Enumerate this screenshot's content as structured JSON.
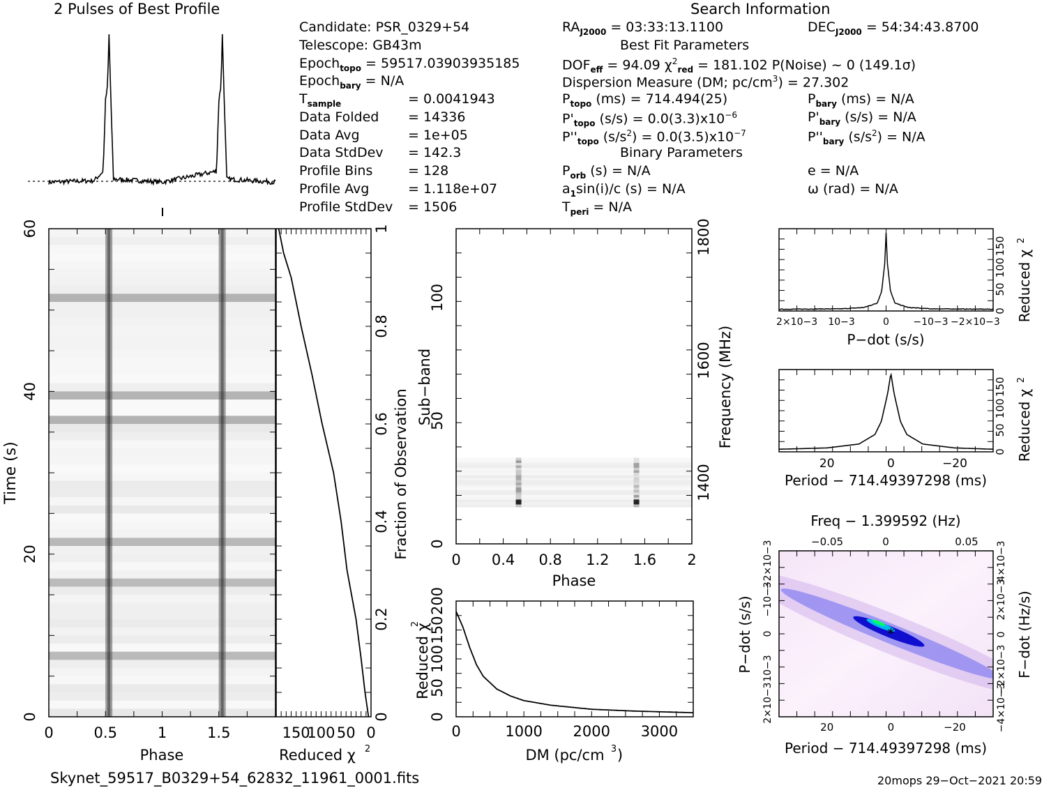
{
  "header": {
    "profile_title": "2 Pulses of Best Profile",
    "search_title": "Search Information",
    "best_fit_title": "Best Fit Parameters",
    "binary_title": "Binary Parameters"
  },
  "info": {
    "candidate": "Candidate:  PSR_0329+54",
    "telescope": "Telescope:  GB43m",
    "epoch_topo": "Epoch",
    "epoch_topo_sub": "topo",
    "epoch_topo_val": " = 59517.03903935185",
    "epoch_bary": "Epoch",
    "epoch_bary_sub": "bary",
    "epoch_bary_val": " = N/A",
    "t_sample": "T",
    "t_sample_sub": "sample",
    "t_sample_val": "=   0.0041943",
    "data_folded": "Data Folded",
    "data_folded_val": "=   14336",
    "data_avg": "Data Avg",
    "data_avg_val": "=   1e+05",
    "data_stddev": "Data StdDev",
    "data_stddev_val": "=   142.3",
    "profile_bins": "Profile Bins",
    "profile_bins_val": "=   128",
    "profile_avg": "Profile Avg",
    "profile_avg_val": "=   1.118e+07",
    "profile_stddev": "Profile StdDev",
    "profile_stddev_val": "=   1506",
    "ra": "RA",
    "ra_sub": "J2000",
    "ra_val": " = 03:33:13.1100",
    "dec": "DEC",
    "dec_sub": "J2000",
    "dec_val": " = 54:34:43.8700",
    "dof": "DOF",
    "dof_sub": "eff",
    "dof_val": " = 94.09  χ",
    "chi_sup": "2",
    "chi_sub": "red",
    "chi_val": " = 181.102  P(Noise) ~ 0   (149.1σ)",
    "dm": "Dispersion Measure (DM; pc/cm",
    "dm_sup": "3",
    "dm_val": ") = 27.302",
    "ptopo": "P",
    "ptopo_sub": "topo",
    "ptopo_val": " (ms) =  714.494(25)",
    "pdtopo": "P'",
    "pdtopo_sub": "topo",
    "pdtopo_val": " (s/s) = 0.0(3.3)x10",
    "pdtopo_exp": "−6",
    "pddtopo": "P''",
    "pddtopo_sub": "topo",
    "pddtopo_val": " (s/s",
    "pddtopo_sup": "2",
    "pddtopo_val2": ") = 0.0(3.5)x10",
    "pddtopo_exp": "−7",
    "pbary": "P",
    "pbary_sub": "bary",
    "pbary_val": " (ms) = N/A",
    "pdbary": "P'",
    "pdbary_sub": "bary",
    "pdbary_val": " (s/s) = N/A",
    "pddbary": "P''",
    "pddbary_sub": "bary",
    "pddbary_val": " (s/s",
    "pddbary_sup": "2",
    "pddbary_val2": ") = N/A",
    "porb": "P",
    "porb_sub": "orb",
    "porb_val": " (s) = N/A",
    "a1": "a",
    "a1_sub": "1",
    "a1_val": "sin(i)/c (s) = N/A",
    "tperi": "T",
    "tperi_sub": "peri",
    "tperi_val": " = N/A",
    "ecc": "e = N/A",
    "omega": "ω (rad) = N/A"
  },
  "footer": {
    "filename": "Skynet_59517_B0329+54_62832_11961_0001.fits",
    "stamp": "20mops 29−Oct−2021 20:59"
  },
  "colors": {
    "ink": "#000000",
    "cmap_low": "#ffffff",
    "cmap_mid": "#0000cc",
    "cmap_high": "#00ff66"
  },
  "chart_data": [
    {
      "id": "profile",
      "type": "line",
      "title": "2 Pulses of Best Profile",
      "xlim": [
        0,
        2
      ],
      "peaks_at_phase": [
        0.53,
        1.53
      ],
      "x_samples": [
        0,
        0.4,
        0.48,
        0.5,
        0.52,
        0.53,
        0.55,
        0.57,
        1.0,
        1.48,
        1.5,
        1.52,
        1.53,
        1.55,
        1.57,
        2.0
      ],
      "y_relative": [
        0.03,
        0.04,
        0.1,
        0.55,
        0.65,
        1.0,
        0.5,
        0.05,
        0.03,
        0.1,
        0.55,
        0.65,
        1.0,
        0.5,
        0.05,
        0.03
      ]
    },
    {
      "id": "time-phase",
      "type": "heatmap",
      "xlabel": "Phase",
      "ylabel": "Time (s)",
      "xlim": [
        0,
        2
      ],
      "ylim": [
        0,
        60
      ],
      "xticks": [
        "0",
        "0.5",
        "1",
        "1.5"
      ],
      "yticks": [
        "0",
        "20",
        "40",
        "60"
      ],
      "pulse_phase": [
        0.53,
        1.53
      ]
    },
    {
      "id": "cumulative-chi2",
      "type": "line",
      "xlabel": "Reduced χ2",
      "ylabel": "Fraction of Observation",
      "xticks": [
        "150",
        "100",
        "50",
        "0"
      ],
      "yticks": [
        "0",
        "0.2",
        "0.4",
        "0.6",
        "0.8",
        "1"
      ],
      "xlim": [
        190,
        0
      ],
      "ylim": [
        0,
        1
      ],
      "x": [
        5,
        12,
        20,
        30,
        48,
        60,
        75,
        98,
        118,
        140,
        160,
        175,
        185
      ],
      "y": [
        0.0,
        0.05,
        0.12,
        0.2,
        0.3,
        0.4,
        0.5,
        0.6,
        0.7,
        0.8,
        0.9,
        0.95,
        1.0
      ]
    },
    {
      "id": "subband-phase",
      "type": "heatmap",
      "xlabel": "Phase",
      "ylabel": "Sub−band",
      "y2label": "Frequency (MHz)",
      "xlim": [
        0,
        2
      ],
      "ylim": [
        0,
        128
      ],
      "xticks": [
        "0",
        "0.4",
        "0.8",
        "1.2",
        "1.6",
        "2"
      ],
      "yticks": [
        "0",
        "50",
        "100"
      ],
      "y2ticks": [
        "1400",
        "1600",
        "1800"
      ],
      "active_subbands": [
        15,
        35
      ],
      "pulse_phase": [
        0.53,
        1.53
      ]
    },
    {
      "id": "dm-chi2",
      "type": "line",
      "xlabel": "DM (pc/cm3)",
      "ylabel": "Reduced χ2",
      "xticks": [
        "0",
        "1000",
        "2000",
        "3000"
      ],
      "yticks": [
        "0",
        "50",
        "100",
        "150",
        "200"
      ],
      "xlim": [
        0,
        3500
      ],
      "ylim": [
        0,
        200
      ],
      "x": [
        0,
        100,
        200,
        300,
        400,
        600,
        800,
        1000,
        1400,
        2000,
        2600,
        3200,
        3500
      ],
      "y": [
        182,
        155,
        120,
        90,
        70,
        48,
        36,
        28,
        20,
        13,
        10,
        8,
        7
      ]
    },
    {
      "id": "pdot-chi2",
      "type": "line",
      "xlabel": "P−dot (s/s)",
      "ylabel": "Reduced χ2",
      "xticks": [
        "2×10−3",
        "10−3",
        "0",
        "−10−3",
        "−2×10−3"
      ],
      "yticks": [
        "0",
        "50",
        "100",
        "150"
      ],
      "xlim": [
        0.0024,
        -0.0024
      ],
      "ylim": [
        0,
        190
      ],
      "x": [
        0.0024,
        0.001,
        0.0005,
        0.0002,
        0.0001,
        3e-05,
        0,
        -3e-05,
        -0.0001,
        -0.0002,
        -0.0005,
        -0.001,
        -0.0024
      ],
      "y": [
        4,
        5,
        8,
        18,
        45,
        110,
        181,
        110,
        45,
        18,
        8,
        5,
        4
      ]
    },
    {
      "id": "period-chi2",
      "type": "line",
      "xlabel": "Period − 714.49397298 (ms)",
      "ylabel": "Reduced χ2",
      "xticks": [
        "20",
        "0",
        "−20"
      ],
      "yticks": [
        "0",
        "50",
        "100",
        "150"
      ],
      "xlim": [
        35,
        -32
      ],
      "ylim": [
        0,
        190
      ],
      "x": [
        35,
        20,
        10,
        5,
        3,
        1,
        0,
        -1,
        -3,
        -5,
        -10,
        -20,
        -32
      ],
      "y": [
        6,
        9,
        18,
        40,
        70,
        135,
        181,
        135,
        70,
        40,
        18,
        9,
        6
      ]
    },
    {
      "id": "p-pdot-plane",
      "type": "heatmap",
      "title": "Freq − 1.399592 (Hz)",
      "xlabel": "Period − 714.49397298 (ms)",
      "ylabel": "P−dot (s/s)",
      "y2label": "F−dot (Hz/s)",
      "xticks": [
        "20",
        "0",
        "−20"
      ],
      "x2ticks": [
        "−0.05",
        "0",
        "0.05"
      ],
      "yticks": [
        "2×10−3",
        "10−3",
        "0",
        "−10−3",
        "−2×10−3"
      ],
      "y2ticks": [
        "−4×10−3",
        "−2×10−3",
        "0",
        "2×10−3",
        "4×10−3"
      ],
      "xlim": [
        35,
        -32
      ],
      "ylim": [
        0.0024,
        -0.0024
      ],
      "best_fit": [
        0,
        0
      ]
    }
  ]
}
